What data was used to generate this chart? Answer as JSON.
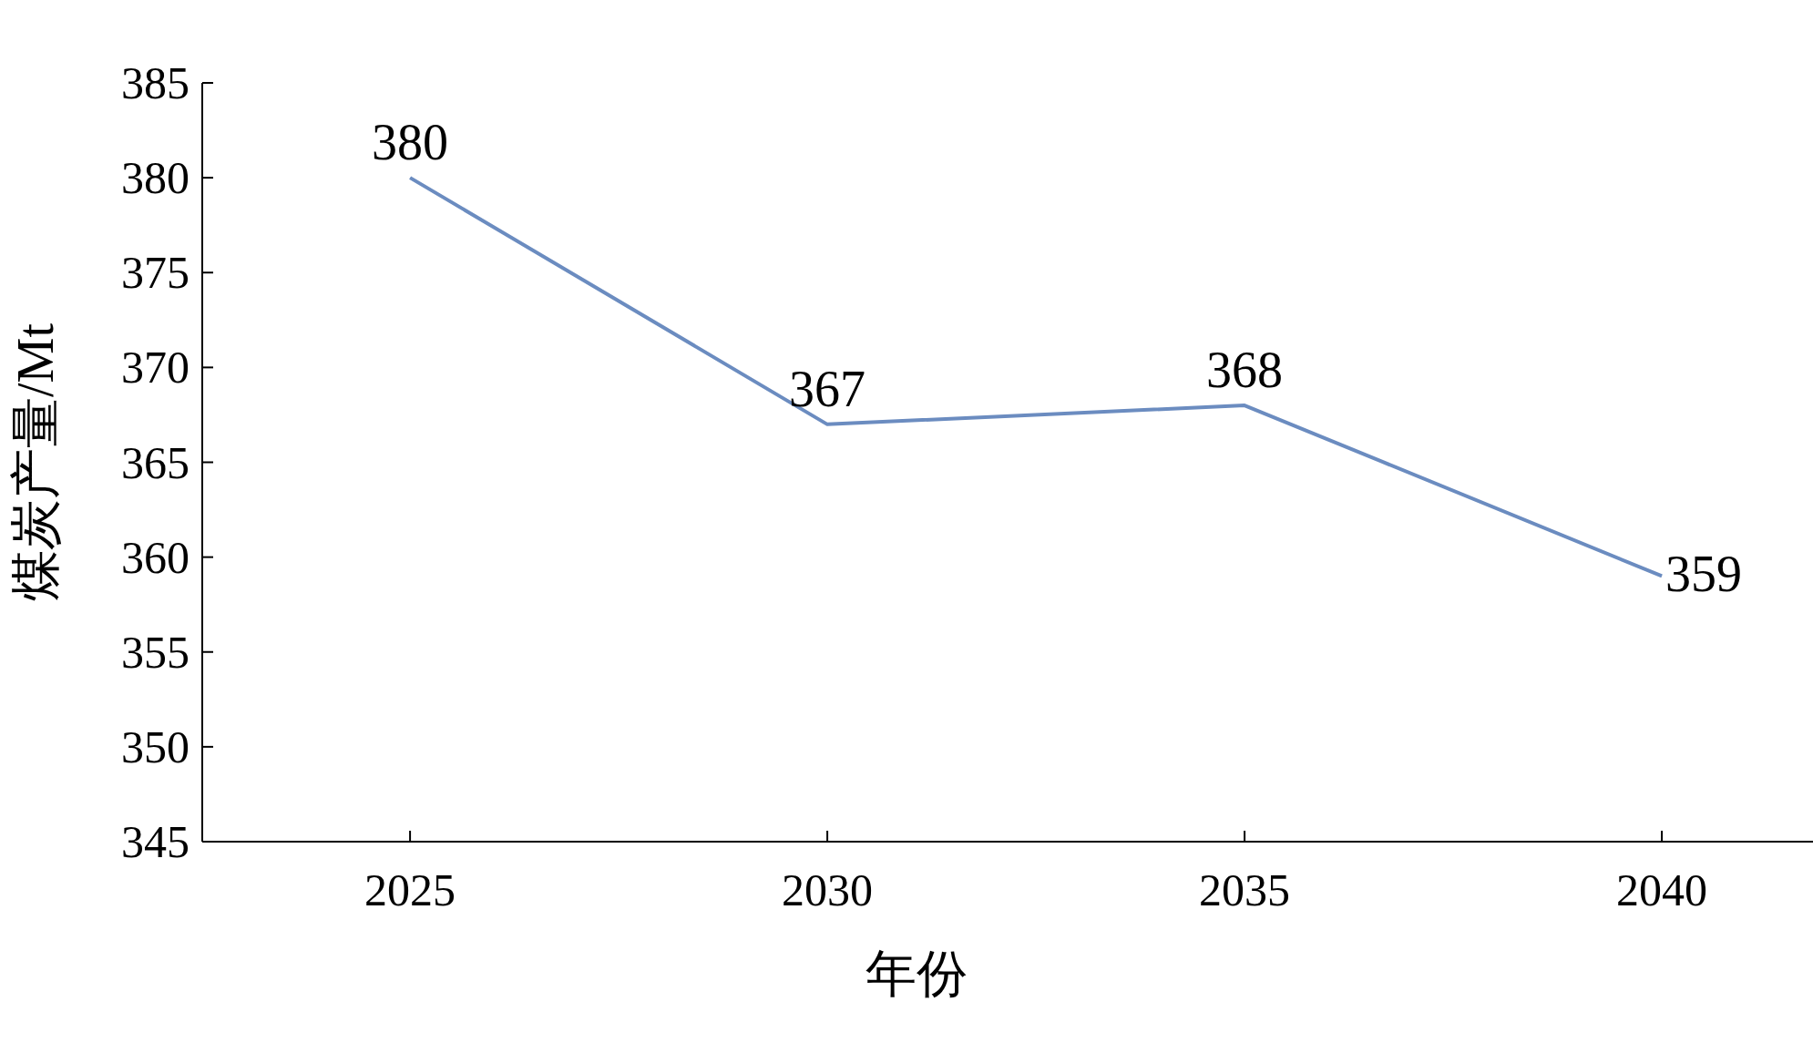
{
  "chart_data": {
    "type": "line",
    "xlabel": "年份",
    "ylabel": "煤炭产量/Mt",
    "categories": [
      "2025",
      "2030",
      "2035",
      "2040"
    ],
    "series": [
      {
        "color": "#6b8cc0",
        "values": [
          380,
          367,
          368,
          359
        ]
      }
    ],
    "ylim": [
      345,
      385
    ],
    "yticks": [
      345,
      350,
      355,
      360,
      365,
      370,
      375,
      380,
      385
    ],
    "data_labels": true,
    "grid": false,
    "marker": "none",
    "line_style": "solid"
  }
}
